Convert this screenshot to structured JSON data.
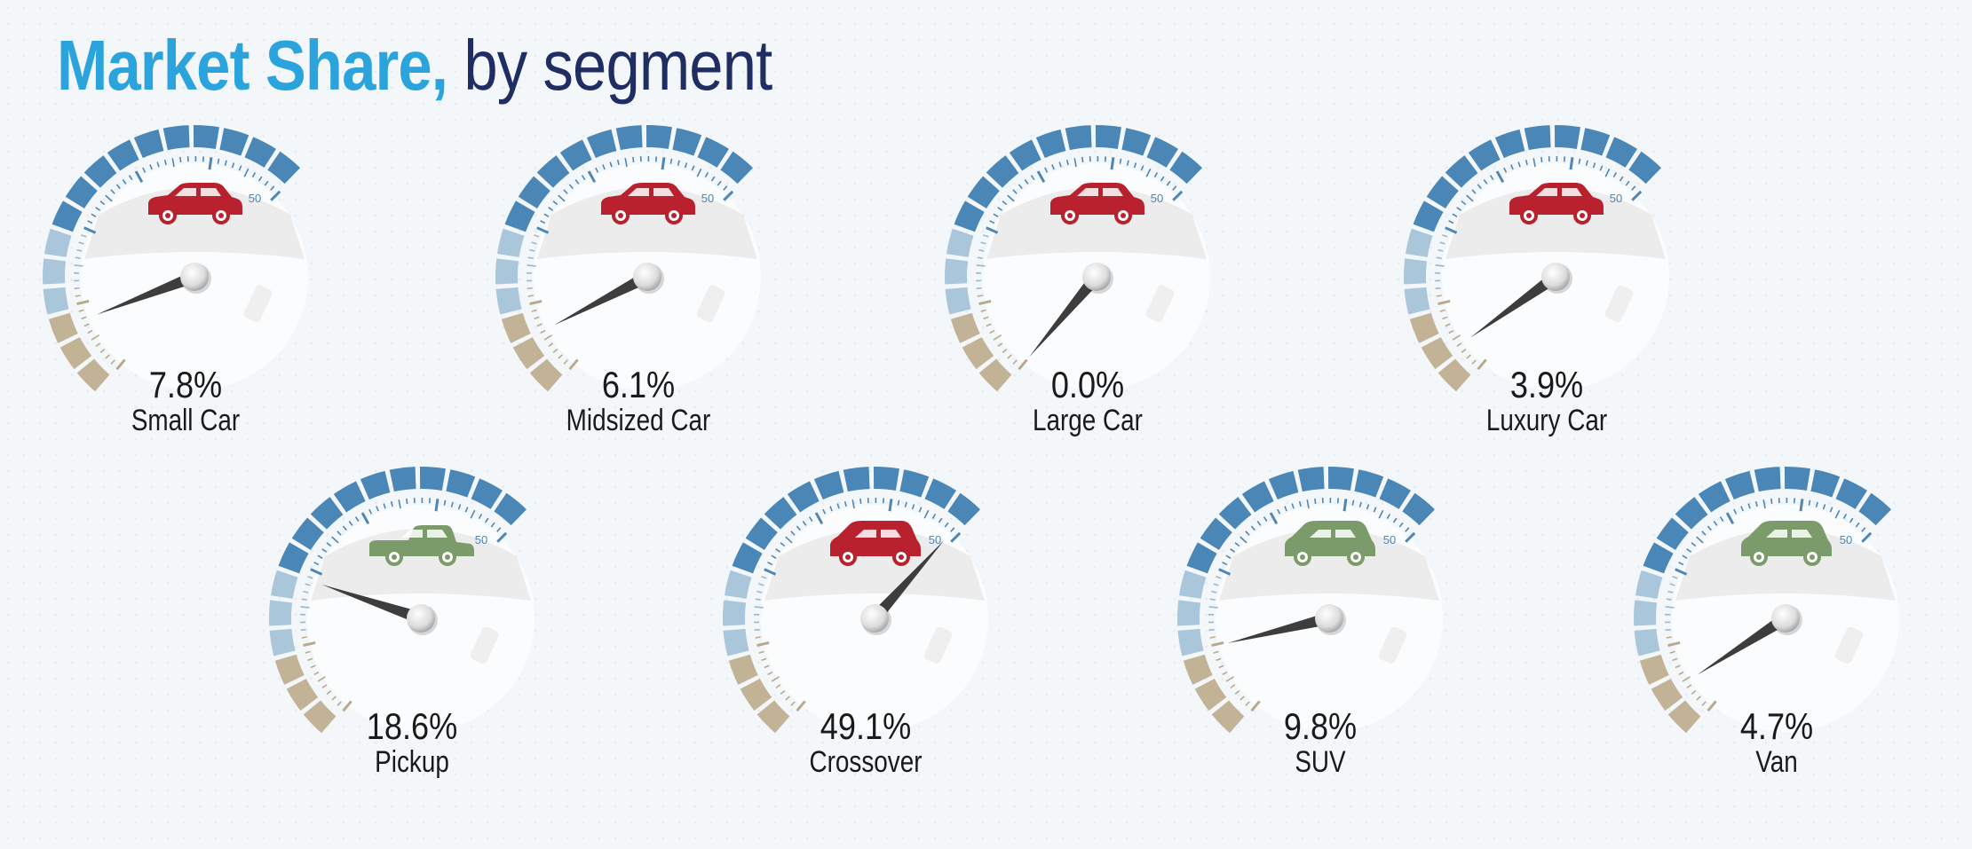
{
  "title": {
    "main": "Market Share,",
    "sub": "by segment"
  },
  "colors": {
    "title_main": "#2ba3dd",
    "title_sub": "#1f2d63",
    "arc_dark": "#4a86b6",
    "arc_light": "#a9c6db",
    "arc_tan": "#c3b396",
    "car_red": "#b8212d",
    "car_green": "#7b9c6a",
    "needle": "#3d3d3d"
  },
  "chart_data": {
    "type": "gauge",
    "title": "Market Share, by segment",
    "unit": "%",
    "max_tick_label": "50",
    "range": [
      0,
      50
    ],
    "segments": [
      {
        "name": "Small Car",
        "value": 7.8,
        "label": "7.8%",
        "icon": "small-car-icon",
        "icon_color": "red"
      },
      {
        "name": "Midsized Car",
        "value": 6.1,
        "label": "6.1%",
        "icon": "midsized-car-icon",
        "icon_color": "red"
      },
      {
        "name": "Large Car",
        "value": 0.0,
        "label": "0.0%",
        "icon": "large-car-icon",
        "icon_color": "red"
      },
      {
        "name": "Luxury Car",
        "value": 3.9,
        "label": "3.9%",
        "icon": "luxury-car-icon",
        "icon_color": "red"
      },
      {
        "name": "Pickup",
        "value": 18.6,
        "label": "18.6%",
        "icon": "pickup-truck-icon",
        "icon_color": "green"
      },
      {
        "name": "Crossover",
        "value": 49.1,
        "label": "49.1%",
        "icon": "crossover-icon",
        "icon_color": "red"
      },
      {
        "name": "SUV",
        "value": 9.8,
        "label": "9.8%",
        "icon": "suv-icon",
        "icon_color": "green"
      },
      {
        "name": "Van",
        "value": 4.7,
        "label": "4.7%",
        "icon": "van-icon",
        "icon_color": "green"
      }
    ]
  }
}
